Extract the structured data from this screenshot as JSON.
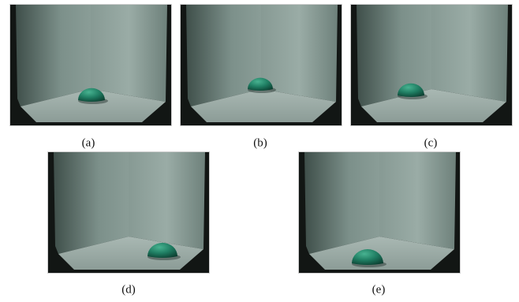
{
  "figure": {
    "panels": [
      {
        "label": "(a)"
      },
      {
        "label": "(b)"
      },
      {
        "label": "(c)"
      },
      {
        "label": "(d)"
      },
      {
        "label": "(e)"
      }
    ]
  }
}
